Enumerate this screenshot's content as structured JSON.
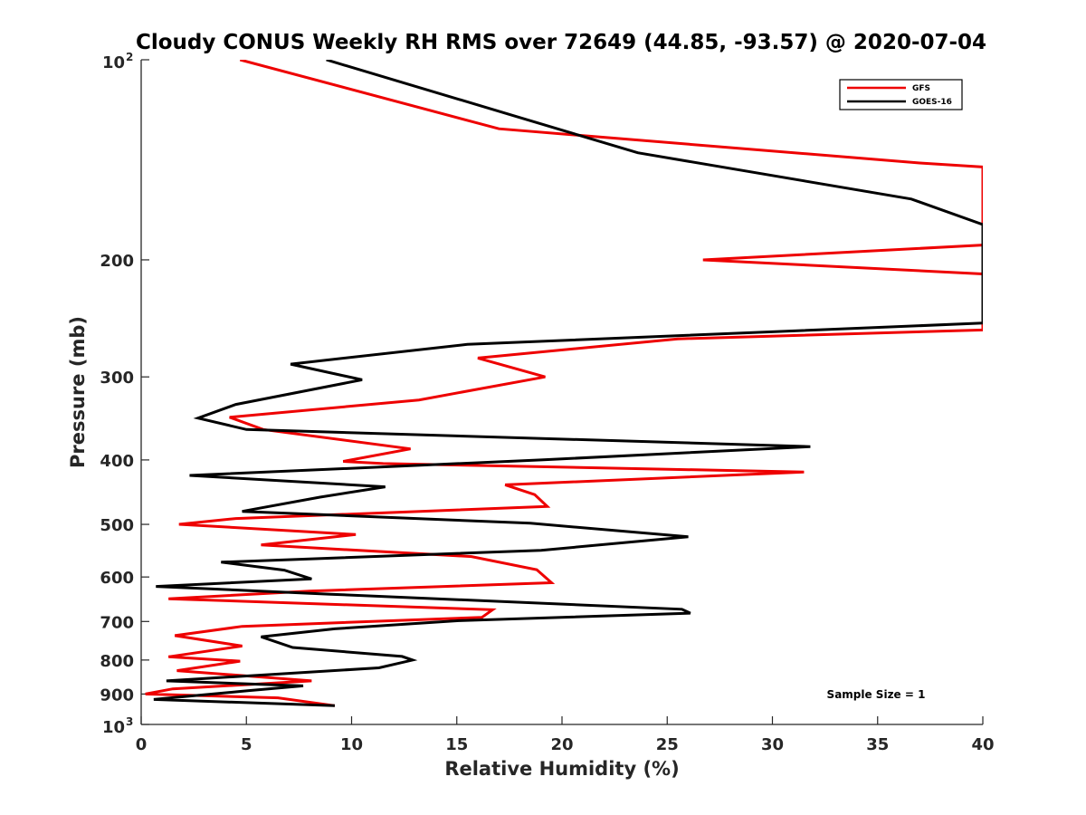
{
  "chart_data": {
    "type": "line",
    "title": "Cloudy CONUS Weekly RH RMS over 72649 (44.85, -93.57) @ 2020-07-04",
    "xlabel": "Relative Humidity (%)",
    "ylabel": "Pressure (mb)",
    "xlim": [
      0,
      40
    ],
    "ylim": [
      100,
      1000
    ],
    "y_scale": "log",
    "y_reversed": true,
    "grid": false,
    "legend_position": "top-right",
    "annotation": "Sample Size = 1",
    "x_ticks": [
      "0",
      "5",
      "10",
      "15",
      "20",
      "25",
      "30",
      "35",
      "40"
    ],
    "x_tick_values": [
      0,
      5,
      10,
      15,
      20,
      25,
      30,
      35,
      40
    ],
    "y_ticks": [
      {
        "value": 100,
        "base": "10",
        "exp": "2"
      },
      {
        "value": 200,
        "label": "200"
      },
      {
        "value": 300,
        "label": "300"
      },
      {
        "value": 400,
        "label": "400"
      },
      {
        "value": 500,
        "label": "500"
      },
      {
        "value": 600,
        "label": "600"
      },
      {
        "value": 700,
        "label": "700"
      },
      {
        "value": 800,
        "label": "800"
      },
      {
        "value": 900,
        "label": "900"
      },
      {
        "value": 1000,
        "base": "10",
        "exp": "3"
      }
    ],
    "series": [
      {
        "name": "GFS",
        "color": "#ee0000",
        "points": [
          [
            4.7,
            100
          ],
          [
            17,
            127
          ],
          [
            37,
            143
          ],
          [
            40,
            145
          ],
          [
            40,
            190
          ],
          [
            26.7,
            200
          ],
          [
            40,
            210
          ],
          [
            40,
            255
          ],
          [
            25.5,
            263
          ],
          [
            16,
            281
          ],
          [
            19.2,
            300
          ],
          [
            13.2,
            325
          ],
          [
            4.2,
            345
          ],
          [
            5.8,
            360
          ],
          [
            12.8,
            385
          ],
          [
            9.6,
            402
          ],
          [
            11.5,
            405
          ],
          [
            31.5,
            417
          ],
          [
            17.3,
            436
          ],
          [
            18.7,
            451
          ],
          [
            19.3,
            470
          ],
          [
            4.5,
            490
          ],
          [
            1.8,
            500
          ],
          [
            10.2,
            518
          ],
          [
            5.7,
            537
          ],
          [
            15.7,
            559
          ],
          [
            18.8,
            585
          ],
          [
            19.5,
            612
          ],
          [
            8,
            630
          ],
          [
            1.3,
            647
          ],
          [
            16.7,
            672
          ],
          [
            16.2,
            690
          ],
          [
            4.8,
            712
          ],
          [
            1.6,
            735
          ],
          [
            4.8,
            762
          ],
          [
            1.3,
            791
          ],
          [
            4.7,
            803
          ],
          [
            1.7,
            830
          ],
          [
            8.1,
            860
          ],
          [
            1.5,
            884
          ],
          [
            0.2,
            900
          ],
          [
            6.5,
            912
          ],
          [
            9.2,
            937
          ]
        ]
      },
      {
        "name": "GOES-16",
        "color": "#000000",
        "points": [
          [
            8.8,
            100
          ],
          [
            23.6,
            138
          ],
          [
            36.6,
            162
          ],
          [
            40,
            177
          ],
          [
            40,
            249
          ],
          [
            15.5,
            268
          ],
          [
            7.1,
            287
          ],
          [
            10.5,
            303
          ],
          [
            4.5,
            330
          ],
          [
            2.7,
            346
          ],
          [
            5,
            360
          ],
          [
            31.8,
            382
          ],
          [
            19,
            400
          ],
          [
            2.3,
            422
          ],
          [
            11.6,
            439
          ],
          [
            8.5,
            455
          ],
          [
            4.8,
            478
          ],
          [
            18.5,
            498
          ],
          [
            26,
            522
          ],
          [
            19,
            547
          ],
          [
            3.8,
            570
          ],
          [
            6.8,
            586
          ],
          [
            8.1,
            604
          ],
          [
            0.7,
            620
          ],
          [
            9,
            637
          ],
          [
            25.7,
            671
          ],
          [
            26.1,
            680
          ],
          [
            15.1,
            698
          ],
          [
            9.2,
            718
          ],
          [
            5.7,
            738
          ],
          [
            7.2,
            766
          ],
          [
            12.4,
            790
          ],
          [
            12.9,
            800
          ],
          [
            11.3,
            822
          ],
          [
            1.2,
            860
          ],
          [
            7.7,
            875
          ],
          [
            5,
            890
          ],
          [
            0.6,
            917
          ],
          [
            9.2,
            937
          ]
        ]
      }
    ]
  }
}
